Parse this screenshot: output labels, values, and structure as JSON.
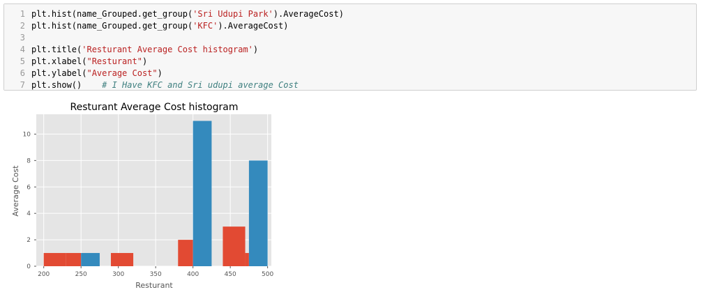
{
  "code": {
    "line_numbers": [
      "1",
      "2",
      "3",
      "4",
      "5",
      "6",
      "7"
    ],
    "lines": [
      {
        "prefix": "plt.hist(name_Grouped.get_group(",
        "string": "'Sri Udupi Park'",
        "suffix": ").AverageCost)",
        "comment": ""
      },
      {
        "prefix": "plt.hist(name_Grouped.get_group(",
        "string": "'KFC'",
        "suffix": ").AverageCost)",
        "comment": ""
      },
      {
        "prefix": "",
        "string": "",
        "suffix": "",
        "comment": ""
      },
      {
        "prefix": "plt.title(",
        "string": "'Resturant Average Cost histogram'",
        "suffix": ")",
        "comment": ""
      },
      {
        "prefix": "plt.xlabel(",
        "string": "\"Resturant\"",
        "suffix": ")",
        "comment": ""
      },
      {
        "prefix": "plt.ylabel(",
        "string": "\"Average Cost\"",
        "suffix": ")",
        "comment": ""
      },
      {
        "prefix": "plt.show()    ",
        "string": "",
        "suffix": "",
        "comment": "# I Have KFC and Sri udupi average Cost"
      }
    ]
  },
  "chart_data": {
    "type": "bar",
    "title": "Resturant Average Cost histogram",
    "xlabel": "Resturant",
    "ylabel": "Average Cost",
    "xlim": [
      190,
      505
    ],
    "ylim": [
      0,
      11.5
    ],
    "xticks": [
      200,
      250,
      300,
      350,
      400,
      450,
      500
    ],
    "yticks": [
      0,
      2,
      4,
      6,
      8,
      10
    ],
    "grid": true,
    "background": "#e5e5e5",
    "series": [
      {
        "color": "#e24a33",
        "bins": [
          {
            "x0": 200,
            "x1": 230,
            "count": 1
          },
          {
            "x0": 230,
            "x1": 250,
            "count": 1
          },
          {
            "x0": 290,
            "x1": 320,
            "count": 1
          },
          {
            "x0": 380,
            "x1": 400,
            "count": 2
          },
          {
            "x0": 440,
            "x1": 470,
            "count": 3
          },
          {
            "x0": 470,
            "x1": 475,
            "count": 1
          }
        ]
      },
      {
        "color": "#348abd",
        "bins": [
          {
            "x0": 250,
            "x1": 275,
            "count": 1
          },
          {
            "x0": 400,
            "x1": 425,
            "count": 11
          },
          {
            "x0": 475,
            "x1": 500,
            "count": 8
          }
        ]
      }
    ]
  }
}
